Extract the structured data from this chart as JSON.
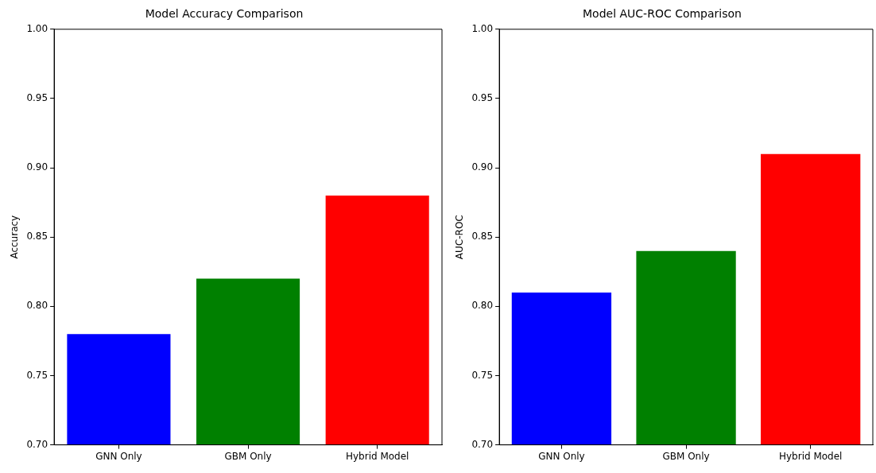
{
  "chart_data": [
    {
      "type": "bar",
      "title": "Model Accuracy Comparison",
      "ylabel": "Accuracy",
      "categories": [
        "GNN Only",
        "GBM Only",
        "Hybrid Model"
      ],
      "values": [
        0.78,
        0.82,
        0.88
      ],
      "colors": [
        "#0000ff",
        "#008000",
        "#ff0000"
      ],
      "ylim": [
        0.7,
        1.0
      ],
      "yticks": [
        {
          "value": 0.7,
          "label": "0.70"
        },
        {
          "value": 0.75,
          "label": "0.75"
        },
        {
          "value": 0.8,
          "label": "0.80"
        },
        {
          "value": 0.85,
          "label": "0.85"
        },
        {
          "value": 0.9,
          "label": "0.90"
        },
        {
          "value": 0.95,
          "label": "0.95"
        },
        {
          "value": 1.0,
          "label": "1.00"
        }
      ]
    },
    {
      "type": "bar",
      "title": "Model AUC-ROC Comparison",
      "ylabel": "AUC-ROC",
      "categories": [
        "GNN Only",
        "GBM Only",
        "Hybrid Model"
      ],
      "values": [
        0.81,
        0.84,
        0.91
      ],
      "colors": [
        "#0000ff",
        "#008000",
        "#ff0000"
      ],
      "ylim": [
        0.7,
        1.0
      ],
      "yticks": [
        {
          "value": 0.7,
          "label": "0.70"
        },
        {
          "value": 0.75,
          "label": "0.75"
        },
        {
          "value": 0.8,
          "label": "0.80"
        },
        {
          "value": 0.85,
          "label": "0.85"
        },
        {
          "value": 0.9,
          "label": "0.90"
        },
        {
          "value": 0.95,
          "label": "0.95"
        },
        {
          "value": 1.0,
          "label": "1.00"
        }
      ]
    }
  ]
}
